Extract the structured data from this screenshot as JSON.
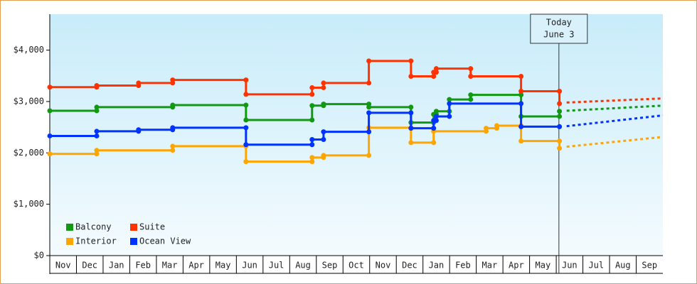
{
  "chart_data": {
    "type": "step",
    "xlim": [
      0,
      23
    ],
    "ylim": [
      0,
      4700
    ],
    "xticks": [
      {
        "value": 0.5,
        "label": "Nov"
      },
      {
        "value": 1.5,
        "label": "Dec"
      },
      {
        "value": 2.5,
        "label": "Jan"
      },
      {
        "value": 3.5,
        "label": "Feb"
      },
      {
        "value": 4.5,
        "label": "Mar"
      },
      {
        "value": 5.5,
        "label": "Apr"
      },
      {
        "value": 6.5,
        "label": "May"
      },
      {
        "value": 7.5,
        "label": "Jun"
      },
      {
        "value": 8.5,
        "label": "Jul"
      },
      {
        "value": 9.5,
        "label": "Aug"
      },
      {
        "value": 10.5,
        "label": "Sep"
      },
      {
        "value": 11.5,
        "label": "Oct"
      },
      {
        "value": 12.5,
        "label": "Nov"
      },
      {
        "value": 13.5,
        "label": "Dec"
      },
      {
        "value": 14.5,
        "label": "Jan"
      },
      {
        "value": 15.5,
        "label": "Feb"
      },
      {
        "value": 16.5,
        "label": "Mar"
      },
      {
        "value": 17.5,
        "label": "Apr"
      },
      {
        "value": 18.5,
        "label": "May"
      },
      {
        "value": 19.5,
        "label": "Jun"
      },
      {
        "value": 20.5,
        "label": "Jul"
      },
      {
        "value": 21.5,
        "label": "Aug"
      },
      {
        "value": 22.5,
        "label": "Sep"
      }
    ],
    "yticks": [
      {
        "value": 0,
        "label": "$0"
      },
      {
        "value": 1000,
        "label": "$1,000"
      },
      {
        "value": 2000,
        "label": "$2,000"
      },
      {
        "value": 3000,
        "label": "$3,000"
      },
      {
        "value": 4000,
        "label": "$4,000"
      }
    ],
    "today": {
      "x": 19.1,
      "label": [
        "Today",
        "June 3"
      ]
    },
    "legend": "bottom-left",
    "series": [
      {
        "name": "Balcony",
        "color": "#119911",
        "x": [
          0,
          1.76,
          4.61,
          7.36,
          9.84,
          10.27,
          11.97,
          13.55,
          14.4,
          14.5,
          14.99,
          15.79,
          17.68,
          19.12
        ],
        "values": [
          2820,
          2890,
          2930,
          2640,
          2920,
          2950,
          2890,
          2590,
          2750,
          2810,
          3040,
          3130,
          2710,
          2810
        ],
        "forecast_x": [
          19.39,
          23
        ],
        "forecast_values": [
          2820,
          2920
        ]
      },
      {
        "name": "Suite",
        "color": "#ff3300",
        "x": [
          0,
          1.76,
          3.33,
          4.61,
          7.36,
          9.84,
          10.27,
          11.97,
          13.55,
          14.4,
          14.5,
          15.79,
          17.68,
          19.12
        ],
        "values": [
          3280,
          3310,
          3360,
          3420,
          3140,
          3270,
          3360,
          3790,
          3490,
          3570,
          3640,
          3490,
          3200,
          2960
        ],
        "forecast_x": [
          19.39,
          23
        ],
        "forecast_values": [
          2980,
          3060
        ]
      },
      {
        "name": "Interior",
        "color": "#ffa500",
        "x": [
          0,
          1.76,
          4.61,
          7.36,
          9.84,
          10.27,
          11.97,
          13.55,
          14.4,
          16.37,
          16.77,
          17.68,
          19.12
        ],
        "values": [
          1980,
          2050,
          2130,
          1830,
          1910,
          1950,
          2490,
          2200,
          2420,
          2480,
          2530,
          2230,
          2090
        ],
        "forecast_x": [
          19.39,
          23
        ],
        "forecast_values": [
          2120,
          2310
        ]
      },
      {
        "name": "Ocean View",
        "color": "#0033ff",
        "x": [
          0,
          1.76,
          3.33,
          4.61,
          7.36,
          9.84,
          10.27,
          11.97,
          13.55,
          14.4,
          14.5,
          14.99,
          17.68,
          19.12
        ],
        "values": [
          2330,
          2420,
          2450,
          2490,
          2160,
          2260,
          2410,
          2780,
          2480,
          2630,
          2710,
          2960,
          2510,
          2510
        ],
        "forecast_x": [
          19.39,
          23
        ],
        "forecast_values": [
          2520,
          2730
        ]
      }
    ]
  }
}
